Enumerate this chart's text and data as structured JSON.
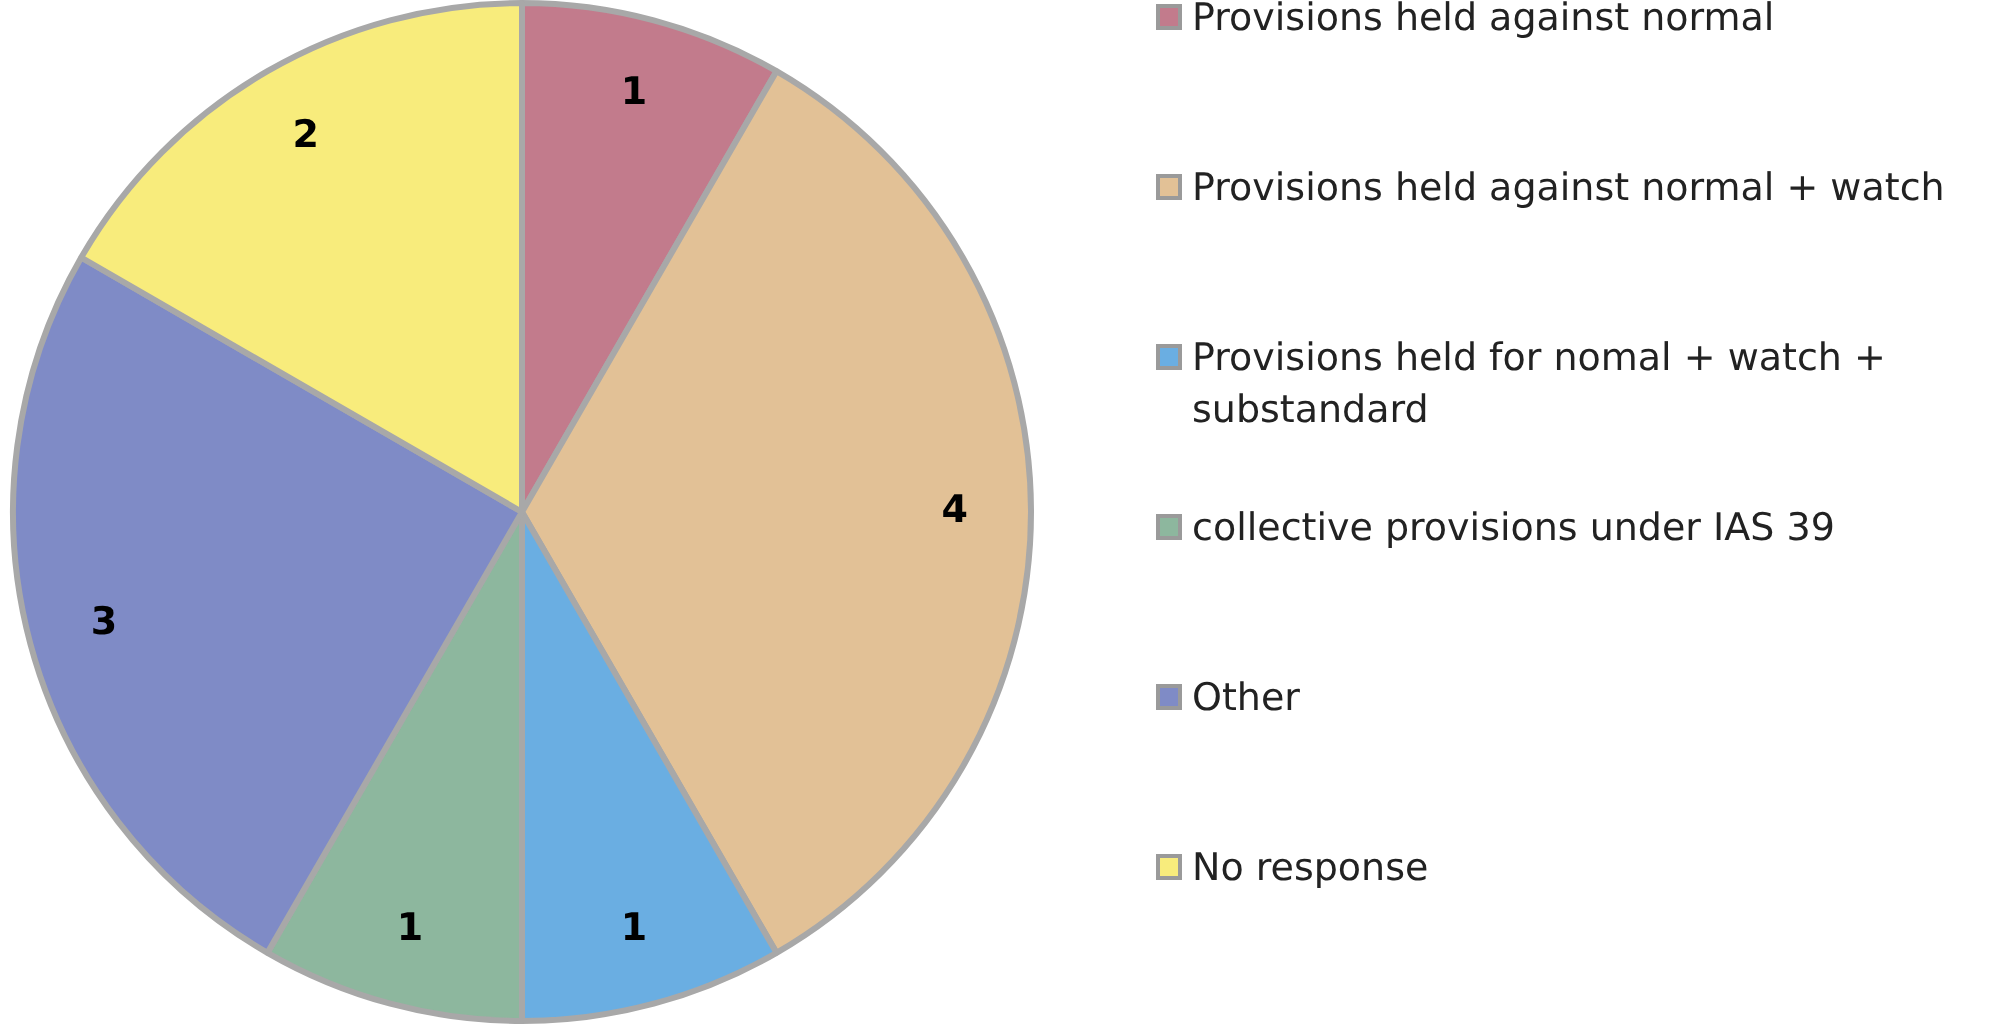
{
  "chart_data": {
    "type": "pie",
    "categories": [
      "Provisions held against normal",
      "Provisions held against normal + watch",
      "Provisions held for nomal + watch + substandard",
      "collective provisions under IAS 39",
      "Other",
      "No response"
    ],
    "values": [
      1,
      4,
      1,
      1,
      3,
      2
    ],
    "colors": [
      "#c27b8c",
      "#e2c196",
      "#6aaee2",
      "#8db79e",
      "#7f8bc6",
      "#f8ec7c"
    ],
    "data_labels": true,
    "legend": "right"
  }
}
